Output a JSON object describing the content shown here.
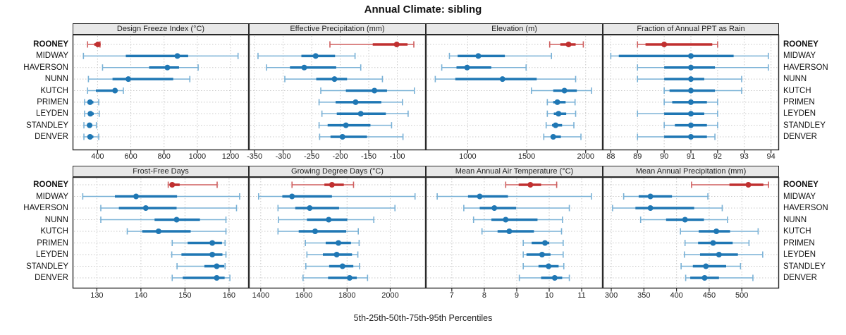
{
  "page_title": "Annual Climate: sibling",
  "chart_data": {
    "type": "scatter",
    "subtype": "percentile-interval-dotplot",
    "title": "Annual Climate: sibling",
    "caption": "5th-25th-50th-75th-95th Percentiles",
    "percentiles": [
      5,
      25,
      50,
      75,
      95
    ],
    "legend_position": "none",
    "grid": "dotted",
    "stations": [
      "ROONEY",
      "MIDWAY",
      "HAVERSON",
      "NUNN",
      "KUTCH",
      "PRIMEN",
      "LEYDEN",
      "STANDLEY",
      "DENVER"
    ],
    "highlight_station": "ROONEY",
    "colors": {
      "highlight": "#c03030",
      "highlight_whisker": "#cf5f5f",
      "normal": "#1f77b4",
      "normal_whisker": "#79b1d6",
      "gridline": "#c9c9c9",
      "panel_border": "#2a2a2a",
      "header_bg": "#e8e8e8"
    },
    "panels": [
      {
        "title": "Design Freeze Index (°C)",
        "axis_range": [
          250,
          1310
        ],
        "axis_ticks": [
          400,
          600,
          800,
          1000,
          1200
        ],
        "values": {
          "ROONEY": [
            340,
            380,
            402,
            408,
            415
          ],
          "MIDWAY": [
            315,
            570,
            880,
            945,
            1245
          ],
          "HAVERSON": [
            430,
            710,
            820,
            890,
            1005
          ],
          "NUNN": [
            345,
            490,
            585,
            855,
            955
          ],
          "KUTCH": [
            340,
            390,
            505,
            512,
            555
          ],
          "PRIMEN": [
            322,
            345,
            355,
            375,
            407
          ],
          "LEYDEN": [
            322,
            345,
            357,
            377,
            410
          ],
          "STANDLEY": [
            318,
            342,
            352,
            368,
            393
          ],
          "DENVER": [
            318,
            345,
            355,
            375,
            407
          ]
        }
      },
      {
        "title": "Effective Precipitation (mm)",
        "axis_range": [
          -360,
          -50
        ],
        "axis_ticks": [
          -350,
          -300,
          -250,
          -200,
          -150,
          -100
        ],
        "values": {
          "ROONEY": [
            -218,
            -143,
            -101,
            -82,
            -71
          ],
          "MIDWAY": [
            -344,
            -268,
            -243,
            -209,
            -174
          ],
          "HAVERSON": [
            -329,
            -288,
            -263,
            -207,
            -164
          ],
          "NUNN": [
            -297,
            -242,
            -210,
            -188,
            -126
          ],
          "KUTCH": [
            -234,
            -190,
            -140,
            -118,
            -70
          ],
          "PRIMEN": [
            -237,
            -208,
            -173,
            -128,
            -91
          ],
          "LEYDEN": [
            -232,
            -206,
            -164,
            -120,
            -81
          ],
          "STANDLEY": [
            -237,
            -222,
            -190,
            -147,
            -110
          ],
          "DENVER": [
            -236,
            -217,
            -196,
            -153,
            -90
          ]
        }
      },
      {
        "title": "Elevation (m)",
        "axis_range": [
          645,
          2145
        ],
        "axis_ticks": [
          1000,
          1500,
          2000
        ],
        "values": {
          "ROONEY": [
            1695,
            1785,
            1855,
            1915,
            1980
          ],
          "MIDWAY": [
            845,
            915,
            1090,
            1315,
            1710
          ],
          "HAVERSON": [
            780,
            905,
            995,
            1200,
            1495
          ],
          "NUNN": [
            725,
            895,
            1295,
            1585,
            1915
          ],
          "KUTCH": [
            1540,
            1725,
            1820,
            1925,
            2050
          ],
          "PRIMEN": [
            1675,
            1725,
            1760,
            1830,
            1910
          ],
          "LEYDEN": [
            1675,
            1730,
            1770,
            1835,
            1915
          ],
          "STANDLEY": [
            1665,
            1715,
            1745,
            1800,
            1900
          ],
          "DENVER": [
            1645,
            1705,
            1725,
            1790,
            1960
          ]
        }
      },
      {
        "title": "Fraction of Annual PPT as Rain",
        "axis_range": [
          87.7,
          94.3
        ],
        "axis_ticks": [
          88,
          89,
          90,
          91,
          92,
          93,
          94
        ],
        "values": {
          "ROONEY": [
            89.0,
            89.3,
            90.0,
            91.8,
            92.0
          ],
          "MIDWAY": [
            88.0,
            88.3,
            91.0,
            92.6,
            93.9
          ],
          "HAVERSON": [
            89.0,
            90.0,
            91.0,
            91.9,
            93.9
          ],
          "NUNN": [
            89.0,
            90.0,
            91.0,
            91.5,
            92.9
          ],
          "KUTCH": [
            90.0,
            90.2,
            91.0,
            91.9,
            92.9
          ],
          "PRIMEN": [
            90.0,
            90.3,
            91.0,
            91.6,
            92.0
          ],
          "LEYDEN": [
            89.0,
            90.0,
            91.0,
            91.5,
            92.0
          ],
          "STANDLEY": [
            90.0,
            90.4,
            91.0,
            91.6,
            92.0
          ],
          "DENVER": [
            89.0,
            90.0,
            91.0,
            91.6,
            91.9
          ]
        }
      },
      {
        "title": "Frost-Free Days",
        "axis_range": [
          124.5,
          164.5
        ],
        "axis_ticks": [
          130,
          140,
          150,
          160
        ],
        "values": {
          "ROONEY": [
            146.2,
            146.5,
            147.1,
            148.8,
            157.3
          ],
          "MIDWAY": [
            126.8,
            134.1,
            138.9,
            148.2,
            162.4
          ],
          "HAVERSON": [
            130.9,
            135.0,
            141.1,
            148.1,
            161.7
          ],
          "NUNN": [
            130.9,
            143.1,
            148.1,
            153.4,
            159.3
          ],
          "KUTCH": [
            136.9,
            140.3,
            144.0,
            151.3,
            159.3
          ],
          "PRIMEN": [
            147.1,
            150.6,
            156.2,
            158.4,
            159.1
          ],
          "LEYDEN": [
            147.0,
            149.2,
            156.2,
            158.5,
            159.3
          ],
          "STANDLEY": [
            148.2,
            154.4,
            157.2,
            158.9,
            159.1
          ],
          "DENVER": [
            147.1,
            149.5,
            157.2,
            159.0,
            160.2
          ]
        }
      },
      {
        "title": "Growing Degree Days (°C)",
        "axis_range": [
          1345,
          2165
        ],
        "axis_ticks": [
          1400,
          1600,
          1800,
          2000
        ],
        "values": {
          "ROONEY": [
            1545,
            1695,
            1730,
            1785,
            1830
          ],
          "MIDWAY": [
            1390,
            1500,
            1545,
            1730,
            2115
          ],
          "HAVERSON": [
            1480,
            1560,
            1627,
            1763,
            2022
          ],
          "NUNN": [
            1482,
            1614,
            1715,
            1801,
            1924
          ],
          "KUTCH": [
            1480,
            1576,
            1652,
            1796,
            1852
          ],
          "PRIMEN": [
            1607,
            1701,
            1760,
            1818,
            1856
          ],
          "LEYDEN": [
            1614,
            1688,
            1752,
            1823,
            1850
          ],
          "STANDLEY": [
            1609,
            1717,
            1779,
            1829,
            1858
          ],
          "DENVER": [
            1596,
            1712,
            1812,
            1845,
            1895
          ]
        }
      },
      {
        "title": "Mean Annual Air Temperature (°C)",
        "axis_range": [
          6.2,
          11.65
        ],
        "axis_ticks": [
          7,
          8,
          9,
          10,
          11
        ],
        "values": {
          "ROONEY": [
            8.66,
            9.06,
            9.42,
            9.75,
            10.23
          ],
          "MIDWAY": [
            6.55,
            7.5,
            7.86,
            8.73,
            11.3
          ],
          "HAVERSON": [
            7.37,
            7.86,
            8.31,
            8.98,
            10.62
          ],
          "NUNN": [
            7.67,
            8.22,
            8.66,
            9.64,
            10.41
          ],
          "KUTCH": [
            7.93,
            8.41,
            8.77,
            9.53,
            10.38
          ],
          "PRIMEN": [
            9.2,
            9.46,
            9.87,
            10.0,
            10.43
          ],
          "LEYDEN": [
            9.2,
            9.3,
            9.78,
            10.04,
            10.43
          ],
          "STANDLEY": [
            9.2,
            9.67,
            9.98,
            10.29,
            10.45
          ],
          "DENVER": [
            9.08,
            9.75,
            10.17,
            10.4,
            10.62
          ]
        }
      },
      {
        "title": "Mean Annual Precipitation (mm)",
        "axis_range": [
          287,
          557
        ],
        "axis_ticks": [
          300,
          350,
          400,
          450,
          500
        ],
        "values": {
          "ROONEY": [
            423,
            481,
            510,
            533,
            541
          ],
          "MIDWAY": [
            319,
            342,
            360,
            393,
            448
          ],
          "HAVERSON": [
            302,
            337,
            360,
            427,
            470
          ],
          "NUNN": [
            345,
            384,
            413,
            442,
            478
          ],
          "KUTCH": [
            406,
            434,
            461,
            482,
            525
          ],
          "PRIMEN": [
            413,
            433,
            456,
            486,
            511
          ],
          "LEYDEN": [
            412,
            436,
            465,
            494,
            532
          ],
          "STANDLEY": [
            407,
            425,
            445,
            476,
            498
          ],
          "DENVER": [
            414,
            421,
            443,
            465,
            517
          ]
        }
      }
    ]
  }
}
